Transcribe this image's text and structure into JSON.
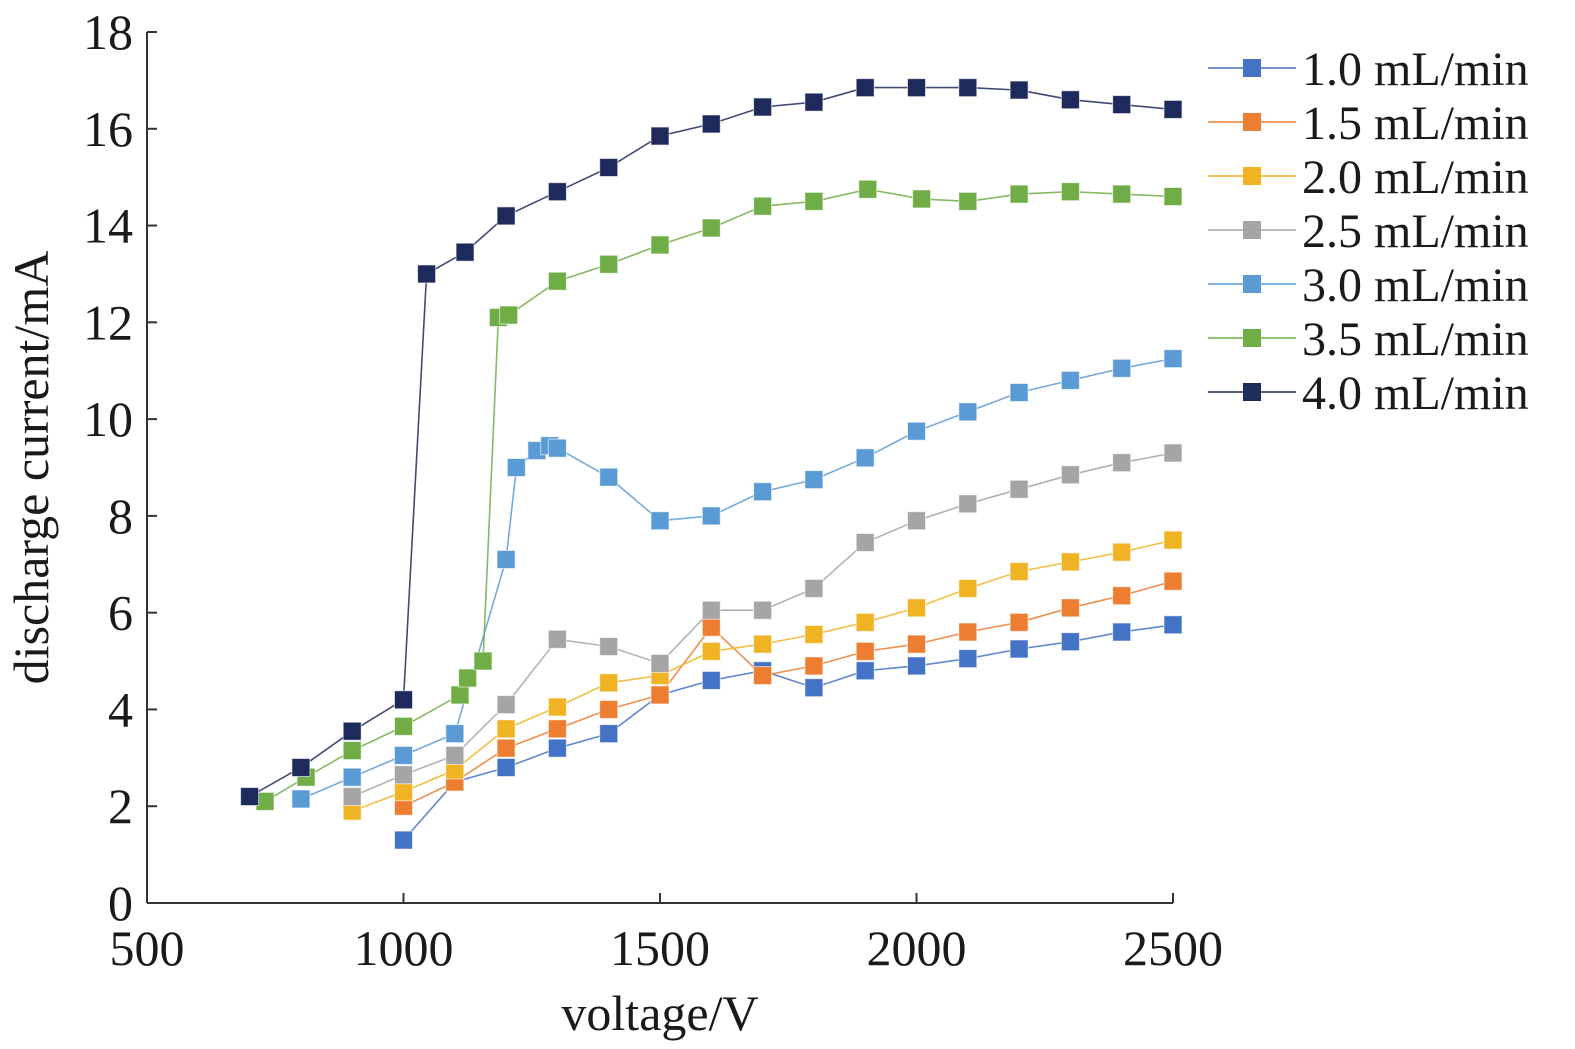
{
  "chart_data": {
    "type": "line",
    "title": "",
    "xlabel": "voltage/V",
    "ylabel": "discharge current/mA",
    "xlim": [
      500,
      2500
    ],
    "ylim": [
      0,
      18
    ],
    "x_ticks": [
      500,
      1000,
      1500,
      2000,
      2500
    ],
    "y_ticks": [
      0,
      2,
      4,
      6,
      8,
      10,
      12,
      14,
      16,
      18
    ],
    "grid": false,
    "legend_position": "top-right",
    "series": [
      {
        "name": "1.0 mL/min",
        "color": "#4472C4",
        "points": [
          [
            1000,
            1.3
          ],
          [
            1100,
            2.5
          ],
          [
            1200,
            2.8
          ],
          [
            1300,
            3.2
          ],
          [
            1400,
            3.5
          ],
          [
            1500,
            4.3
          ],
          [
            1600,
            4.6
          ],
          [
            1700,
            4.8
          ],
          [
            1800,
            4.45
          ],
          [
            1900,
            4.8
          ],
          [
            2000,
            4.9
          ],
          [
            2100,
            5.05
          ],
          [
            2200,
            5.25
          ],
          [
            2300,
            5.4
          ],
          [
            2400,
            5.6
          ],
          [
            2500,
            5.75
          ]
        ]
      },
      {
        "name": "1.5 mL/min",
        "color": "#ED7D31",
        "points": [
          [
            1000,
            2.0
          ],
          [
            1100,
            2.5
          ],
          [
            1200,
            3.2
          ],
          [
            1300,
            3.6
          ],
          [
            1400,
            4.0
          ],
          [
            1500,
            4.3
          ],
          [
            1600,
            5.7
          ],
          [
            1700,
            4.7
          ],
          [
            1800,
            4.9
          ],
          [
            1900,
            5.2
          ],
          [
            2000,
            5.35
          ],
          [
            2100,
            5.6
          ],
          [
            2200,
            5.8
          ],
          [
            2300,
            6.1
          ],
          [
            2400,
            6.35
          ],
          [
            2500,
            6.65
          ]
        ]
      },
      {
        "name": "2.0 mL/min",
        "color": "#F0B323",
        "points": [
          [
            900,
            1.9
          ],
          [
            1000,
            2.3
          ],
          [
            1100,
            2.75
          ],
          [
            1200,
            3.6
          ],
          [
            1300,
            4.05
          ],
          [
            1400,
            4.55
          ],
          [
            1500,
            4.7
          ],
          [
            1600,
            5.2
          ],
          [
            1700,
            5.35
          ],
          [
            1800,
            5.55
          ],
          [
            1900,
            5.8
          ],
          [
            2000,
            6.1
          ],
          [
            2100,
            6.5
          ],
          [
            2200,
            6.85
          ],
          [
            2300,
            7.05
          ],
          [
            2400,
            7.25
          ],
          [
            2500,
            7.5
          ]
        ]
      },
      {
        "name": "2.5 mL/min",
        "color": "#A5A5A5",
        "points": [
          [
            900,
            2.2
          ],
          [
            1000,
            2.65
          ],
          [
            1100,
            3.05
          ],
          [
            1200,
            4.1
          ],
          [
            1300,
            5.45
          ],
          [
            1400,
            5.3
          ],
          [
            1500,
            4.95
          ],
          [
            1600,
            6.05
          ],
          [
            1700,
            6.05
          ],
          [
            1800,
            6.5
          ],
          [
            1900,
            7.45
          ],
          [
            2000,
            7.9
          ],
          [
            2100,
            8.25
          ],
          [
            2200,
            8.55
          ],
          [
            2300,
            8.85
          ],
          [
            2400,
            9.1
          ],
          [
            2500,
            9.3
          ]
        ]
      },
      {
        "name": "3.0 mL/min",
        "color": "#5B9BD5",
        "points": [
          [
            800,
            2.15
          ],
          [
            900,
            2.6
          ],
          [
            1000,
            3.05
          ],
          [
            1100,
            3.5
          ],
          [
            1200,
            7.1
          ],
          [
            1220,
            9.0
          ],
          [
            1260,
            9.35
          ],
          [
            1285,
            9.45
          ],
          [
            1300,
            9.4
          ],
          [
            1400,
            8.8
          ],
          [
            1500,
            7.9
          ],
          [
            1600,
            8.0
          ],
          [
            1700,
            8.5
          ],
          [
            1800,
            8.75
          ],
          [
            1900,
            9.2
          ],
          [
            2000,
            9.75
          ],
          [
            2100,
            10.15
          ],
          [
            2200,
            10.55
          ],
          [
            2300,
            10.8
          ],
          [
            2400,
            11.05
          ],
          [
            2500,
            11.25
          ]
        ]
      },
      {
        "name": "3.5 mL/min",
        "color": "#70AD47",
        "points": [
          [
            730,
            2.1
          ],
          [
            810,
            2.6
          ],
          [
            900,
            3.15
          ],
          [
            1000,
            3.65
          ],
          [
            1110,
            4.3
          ],
          [
            1125,
            4.65
          ],
          [
            1155,
            5.0
          ],
          [
            1185,
            12.1
          ],
          [
            1205,
            12.15
          ],
          [
            1300,
            12.85
          ],
          [
            1400,
            13.2
          ],
          [
            1500,
            13.6
          ],
          [
            1600,
            13.95
          ],
          [
            1700,
            14.4
          ],
          [
            1800,
            14.5
          ],
          [
            1905,
            14.75
          ],
          [
            2010,
            14.55
          ],
          [
            2100,
            14.5
          ],
          [
            2200,
            14.65
          ],
          [
            2300,
            14.7
          ],
          [
            2400,
            14.65
          ],
          [
            2500,
            14.6
          ]
        ]
      },
      {
        "name": "4.0 mL/min",
        "color": "#1F2A5C",
        "points": [
          [
            700,
            2.2
          ],
          [
            800,
            2.8
          ],
          [
            900,
            3.55
          ],
          [
            1000,
            4.2
          ],
          [
            1045,
            13.0
          ],
          [
            1120,
            13.45
          ],
          [
            1200,
            14.2
          ],
          [
            1300,
            14.7
          ],
          [
            1400,
            15.2
          ],
          [
            1500,
            15.85
          ],
          [
            1600,
            16.1
          ],
          [
            1700,
            16.45
          ],
          [
            1800,
            16.55
          ],
          [
            1900,
            16.85
          ],
          [
            2000,
            16.85
          ],
          [
            2100,
            16.85
          ],
          [
            2200,
            16.8
          ],
          [
            2300,
            16.6
          ],
          [
            2400,
            16.5
          ],
          [
            2500,
            16.4
          ]
        ]
      }
    ]
  }
}
